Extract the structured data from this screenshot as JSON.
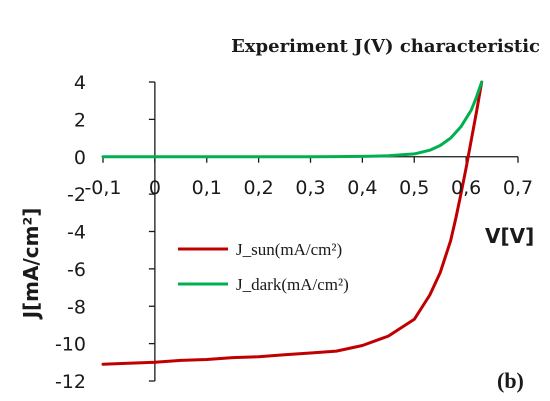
{
  "chart_data": {
    "type": "line",
    "title": "Experiment J(V) characteristic",
    "xlabel": "V[V]",
    "ylabel": "J[mA/cm²]",
    "panel_label": "(b)",
    "xlim": [
      -0.1,
      0.7
    ],
    "ylim": [
      -12,
      4
    ],
    "x_ticks": [
      -0.1,
      0,
      0.1,
      0.2,
      0.3,
      0.4,
      0.5,
      0.6,
      0.7
    ],
    "x_tick_labels": [
      "-0,1",
      "0",
      "0,1",
      "0,2",
      "0,3",
      "0,4",
      "0,5",
      "0,6",
      "0,7"
    ],
    "y_ticks": [
      4,
      2,
      0,
      -2,
      -4,
      -6,
      -8,
      -10,
      -12
    ],
    "y_tick_labels": [
      "4",
      "2",
      "0",
      "-2",
      "-4",
      "-6",
      "-8",
      "-10",
      "-12"
    ],
    "grid": false,
    "legend": "center-left",
    "series": [
      {
        "name": "J_sun(mA/cm²)",
        "color": "#c00000",
        "x": [
          -0.1,
          -0.05,
          0,
          0.05,
          0.1,
          0.15,
          0.2,
          0.25,
          0.3,
          0.35,
          0.4,
          0.45,
          0.5,
          0.53,
          0.55,
          0.57,
          0.58,
          0.59,
          0.6,
          0.61,
          0.62,
          0.63
        ],
        "y": [
          -11.1,
          -11.05,
          -11.0,
          -10.9,
          -10.85,
          -10.75,
          -10.7,
          -10.6,
          -10.5,
          -10.4,
          -10.1,
          -9.6,
          -8.7,
          -7.4,
          -6.2,
          -4.5,
          -3.3,
          -2.0,
          -0.6,
          0.9,
          2.4,
          4.0
        ]
      },
      {
        "name": "J_dark(mA/cm²)",
        "color": "#00b050",
        "x": [
          -0.1,
          0,
          0.1,
          0.2,
          0.3,
          0.35,
          0.4,
          0.45,
          0.5,
          0.53,
          0.55,
          0.57,
          0.59,
          0.61,
          0.62,
          0.63
        ],
        "y": [
          0,
          0,
          0,
          0,
          0,
          0.01,
          0.02,
          0.05,
          0.15,
          0.35,
          0.6,
          1.0,
          1.6,
          2.5,
          3.2,
          4.0
        ]
      }
    ]
  }
}
